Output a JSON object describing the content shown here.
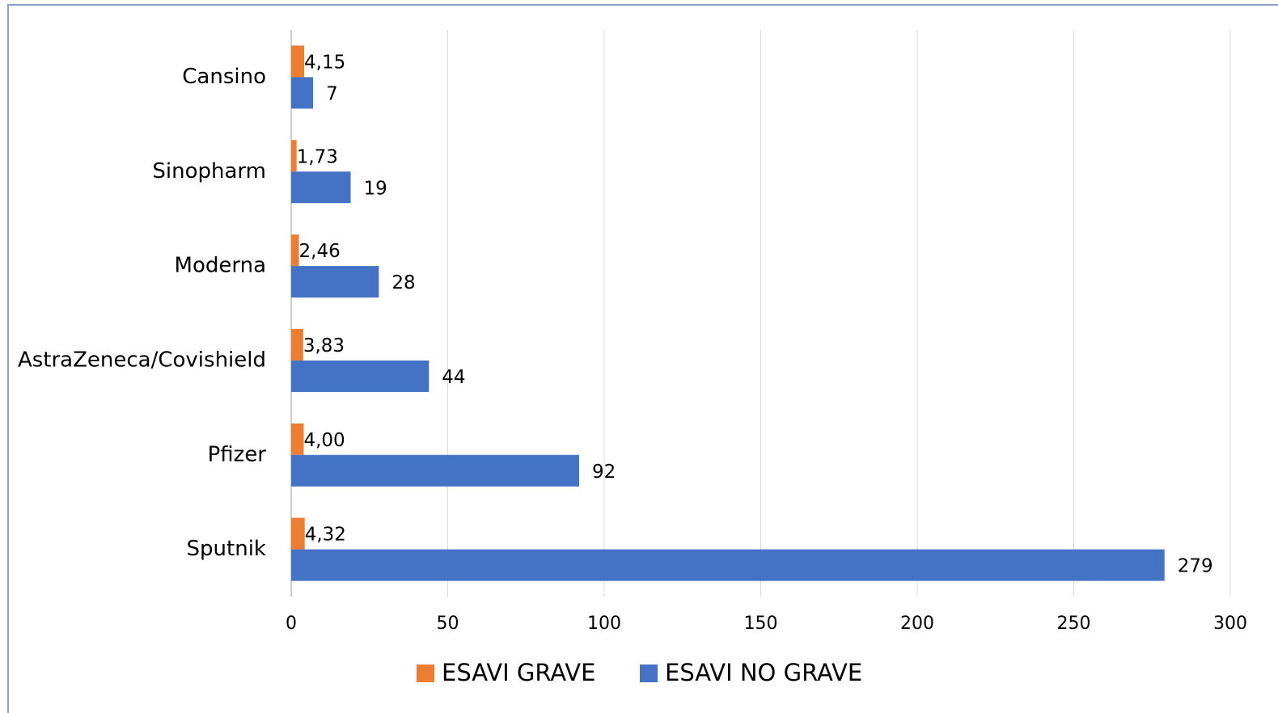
{
  "chart_data": {
    "type": "hbar",
    "categories": [
      "Cansino",
      "Sinopharm",
      "Moderna",
      "AstraZeneca/Covishield",
      "Pfizer",
      "Sputnik"
    ],
    "series": [
      {
        "name": "ESAVI GRAVE",
        "color": "#ed7d31",
        "values": [
          4.15,
          1.73,
          2.46,
          3.83,
          4.0,
          4.32
        ],
        "value_labels": [
          "4,15",
          "1,73",
          "2,46",
          "3,83",
          "4,00",
          "4,32"
        ]
      },
      {
        "name": "ESAVI NO GRAVE",
        "color": "#4472c4",
        "values": [
          7,
          19,
          28,
          44,
          92,
          279
        ]
      }
    ],
    "xlim": [
      0,
      300
    ],
    "xticks": [
      0,
      50,
      100,
      150,
      200,
      250,
      300
    ],
    "grid": true,
    "legend": "bottom"
  }
}
